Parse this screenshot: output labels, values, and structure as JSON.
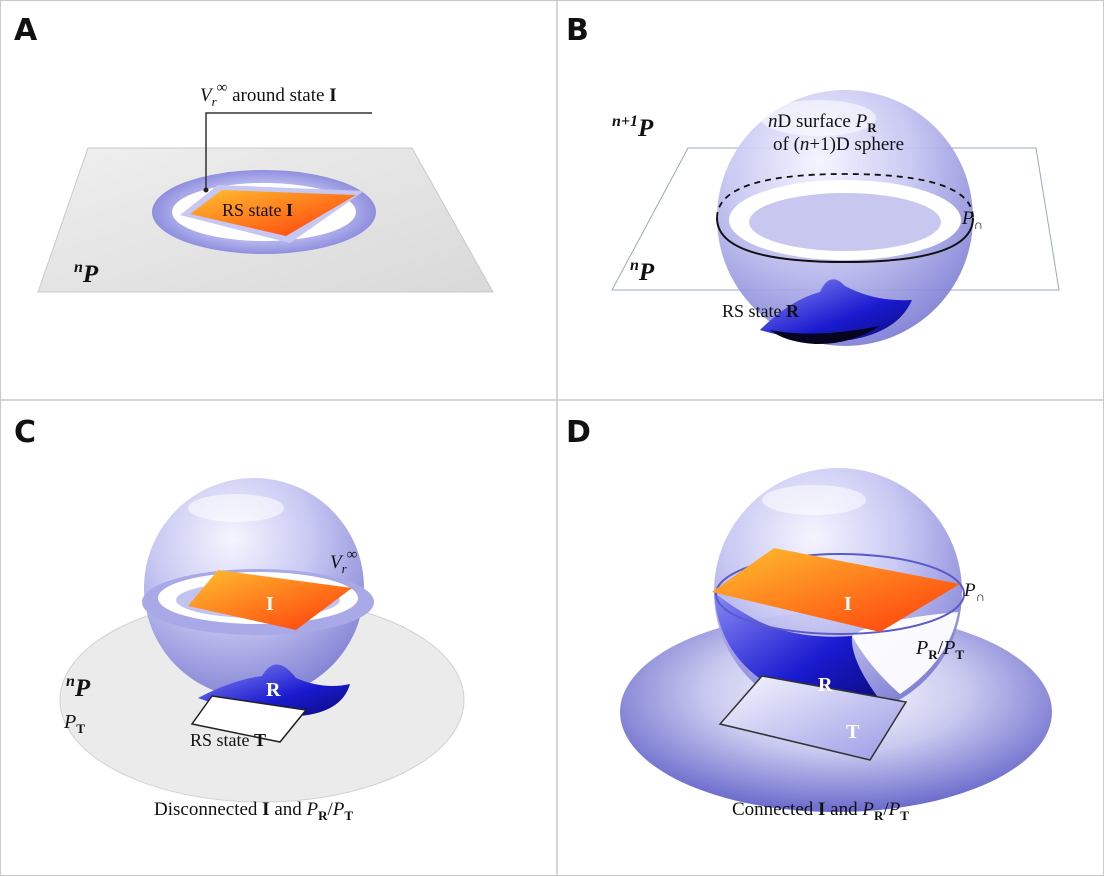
{
  "panels": {
    "a": {
      "letter": "A",
      "vr_symbol": "V",
      "vr_sub": "r",
      "vr_sup": "∞",
      "vr_text": " around state ",
      "state_I": "I",
      "rs_state_text": "RS state ",
      "plane_sup": "n",
      "plane_main": "P"
    },
    "b": {
      "letter": "B",
      "space_sup": "n+1",
      "space_main": "P",
      "surface_n": "n",
      "surface_text": "D surface ",
      "surface_P": "P",
      "surface_sub": "R",
      "sphere_line": "of (",
      "sphere_n": "n",
      "sphere_tail": "+1)D sphere",
      "p_cap": "P",
      "p_cap_sub": "∩",
      "plane_sup": "n",
      "plane_main": "P",
      "rs_state_text": "RS state ",
      "state_R": "R"
    },
    "c": {
      "letter": "C",
      "vr_symbol": "V",
      "vr_sub": "r",
      "vr_sup": "∞",
      "state_I": "I",
      "state_R": "R",
      "plane_sup": "n",
      "plane_main": "P",
      "pt_main": "P",
      "pt_sub": "T",
      "rs_state_text": "RS state ",
      "state_T": "T",
      "caption_pre": "Disconnected ",
      "caption_I": "I",
      "caption_and": " and ",
      "caption_PR": "P",
      "caption_R": "R",
      "caption_slash": "/",
      "caption_PT": "P",
      "caption_T": "T"
    },
    "d": {
      "letter": "D",
      "state_I": "I",
      "state_R": "R",
      "state_T": "T",
      "p_cap": "P",
      "p_cap_sub": "∩",
      "pr_main": "P",
      "pr_sub": "R",
      "slash": "/",
      "pt_main": "P",
      "pt_sub": "T",
      "caption_pre": "Connected ",
      "caption_I": "I",
      "caption_and": " and ",
      "caption_PR": "P",
      "caption_R": "R",
      "caption_slash": "/",
      "caption_PT": "P",
      "caption_T": "T"
    }
  },
  "colors": {
    "sphere": "#8e8ee0",
    "ring": "#9d9de6",
    "orange_light": "#ffb020",
    "orange_dark": "#ff4c10",
    "deep_blue": "#1414c8",
    "plane_gray": "#e6e6e6"
  }
}
